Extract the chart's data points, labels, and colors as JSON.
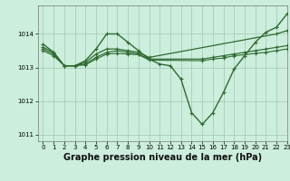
{
  "background_color": "#cceedd",
  "grid_color": "#aaccbb",
  "line_color": "#2d6b2d",
  "xlabel": "Graphe pression niveau de la mer (hPa)",
  "xlabel_fontsize": 7.0,
  "ylim": [
    1010.8,
    1014.85
  ],
  "xlim": [
    -0.5,
    23
  ],
  "yticks": [
    1011,
    1012,
    1013,
    1014
  ],
  "xticks": [
    0,
    1,
    2,
    3,
    4,
    5,
    6,
    7,
    8,
    9,
    10,
    11,
    12,
    13,
    14,
    15,
    16,
    17,
    18,
    19,
    20,
    21,
    22,
    23
  ],
  "series": [
    {
      "x": [
        0,
        1,
        2,
        3,
        4,
        5,
        6,
        7,
        8,
        9,
        10,
        11,
        12,
        13,
        14,
        15,
        16,
        17,
        18,
        19,
        20,
        21,
        22,
        23
      ],
      "y": [
        1013.7,
        1013.45,
        1013.05,
        1013.05,
        1013.2,
        1013.55,
        1014.0,
        1014.0,
        1013.75,
        1013.5,
        1013.25,
        1013.1,
        1013.05,
        1012.65,
        1011.65,
        1011.3,
        1011.65,
        1012.25,
        1012.95,
        1013.35,
        1013.75,
        1014.05,
        1014.2,
        1014.6
      ],
      "lw": 1.0,
      "marker": true
    },
    {
      "x": [
        0,
        1,
        2,
        3,
        4,
        5,
        6,
        7,
        8,
        9,
        10,
        22,
        23
      ],
      "y": [
        1013.6,
        1013.45,
        1013.05,
        1013.05,
        1013.15,
        1013.4,
        1013.55,
        1013.55,
        1013.5,
        1013.45,
        1013.3,
        1014.0,
        1014.1
      ],
      "lw": 0.9,
      "marker": true
    },
    {
      "x": [
        0,
        1,
        2,
        3,
        4,
        5,
        6,
        7,
        8,
        9,
        10,
        15,
        16,
        17,
        18,
        19,
        20,
        21,
        22,
        23
      ],
      "y": [
        1013.55,
        1013.4,
        1013.05,
        1013.05,
        1013.1,
        1013.3,
        1013.45,
        1013.5,
        1013.45,
        1013.4,
        1013.25,
        1013.25,
        1013.3,
        1013.35,
        1013.4,
        1013.45,
        1013.5,
        1013.55,
        1013.6,
        1013.65
      ],
      "lw": 0.85,
      "marker": true
    },
    {
      "x": [
        0,
        1,
        2,
        3,
        4,
        5,
        6,
        7,
        8,
        9,
        10,
        15,
        16,
        17,
        18,
        19,
        20,
        21,
        22,
        23
      ],
      "y": [
        1013.5,
        1013.35,
        1013.05,
        1013.05,
        1013.08,
        1013.25,
        1013.4,
        1013.42,
        1013.4,
        1013.38,
        1013.22,
        1013.2,
        1013.25,
        1013.28,
        1013.35,
        1013.38,
        1013.42,
        1013.45,
        1013.5,
        1013.55
      ],
      "lw": 0.8,
      "marker": true
    }
  ]
}
